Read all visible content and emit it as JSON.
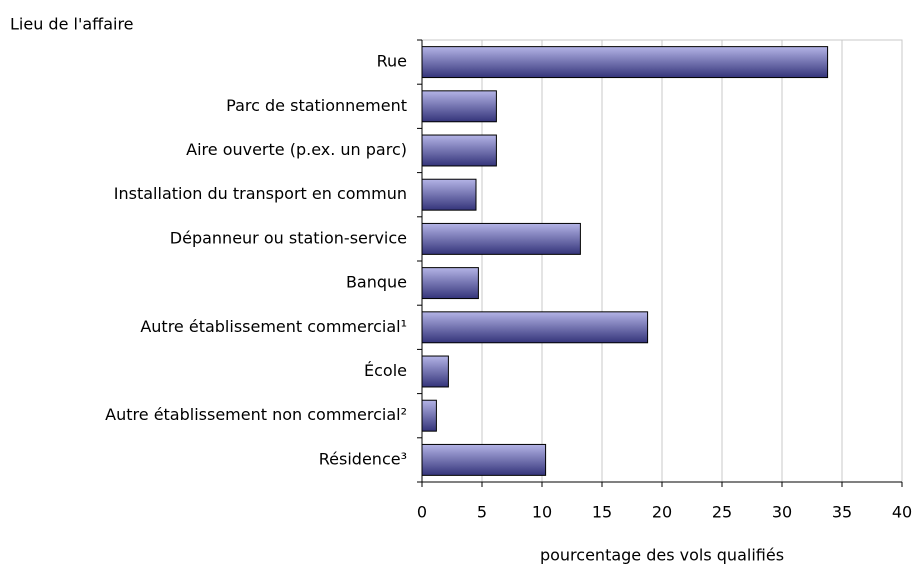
{
  "chart_data": {
    "type": "bar",
    "orientation": "horizontal",
    "y_axis_title": "Lieu de l'affaire",
    "x_axis_title": "pourcentage des vols qualifiés",
    "categories": [
      "Rue",
      "Parc de stationnement",
      "Aire ouverte (p.ex. un parc)",
      "Installation du transport en commun",
      "Dépanneur ou station-service",
      "Banque",
      "Autre établissement commercial¹",
      "École",
      "Autre établissement non commercial²",
      "Résidence³"
    ],
    "values": [
      33.8,
      6.2,
      6.2,
      4.5,
      13.2,
      4.7,
      18.8,
      2.2,
      1.2,
      10.3
    ],
    "color": "#34347a",
    "xlim": [
      0,
      40
    ],
    "xticks": [
      0,
      5,
      10,
      15,
      20,
      25,
      30,
      35,
      40
    ],
    "grid": true
  }
}
